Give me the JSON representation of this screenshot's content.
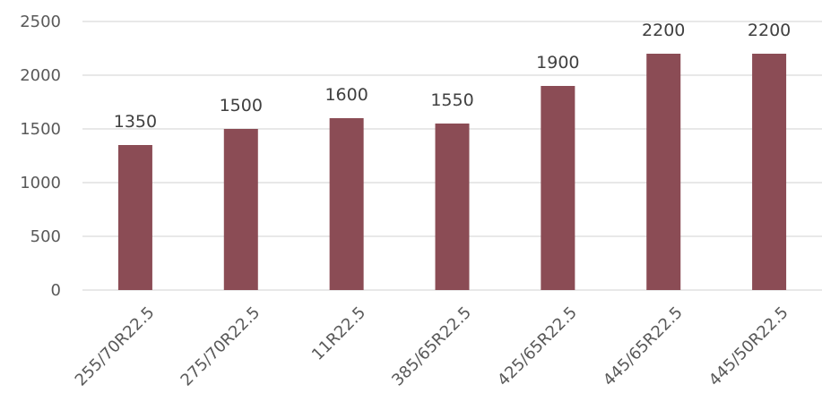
{
  "chart_data": {
    "type": "bar",
    "categories": [
      "255/70R22.5",
      "275/70R22.5",
      "11R22.5",
      "385/65R22.5",
      "425/65R22.5",
      "445/65R22.5",
      "445/50R22.5"
    ],
    "values": [
      1350,
      1500,
      1600,
      1550,
      1900,
      2200,
      2200
    ],
    "yticks": [
      0,
      500,
      1000,
      1500,
      2000,
      2500
    ],
    "ylim": [
      0,
      2500
    ],
    "grid": true,
    "legend": "none",
    "bar_color": "#8B4C55",
    "grid_color": "#D9D9D9",
    "title": "",
    "xlabel": "",
    "ylabel": ""
  }
}
